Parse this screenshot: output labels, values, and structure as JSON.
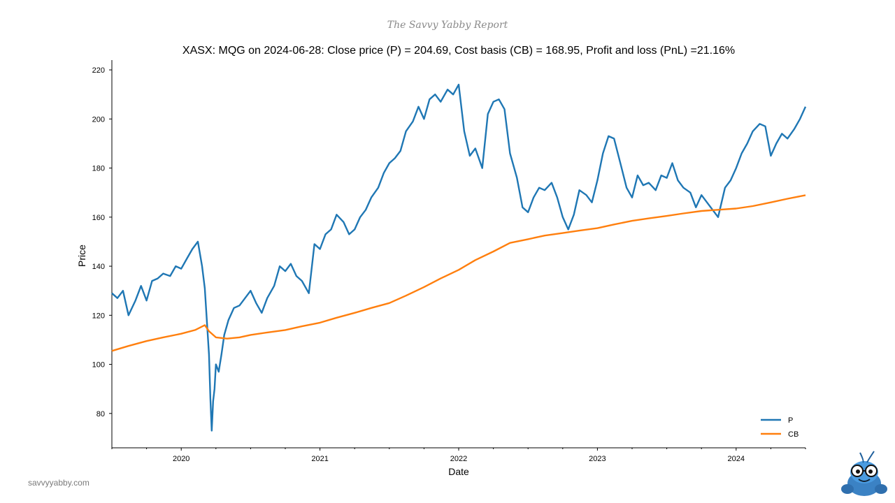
{
  "header": {
    "report_title": "The Savvy Yabby Report"
  },
  "footer": {
    "site_url": "savvyyabby.com"
  },
  "colors": {
    "price": "#1f77b4",
    "cost_basis": "#ff7f0e",
    "axis": "#000000"
  },
  "chart_data": {
    "type": "line",
    "title": "XASX: MQG on 2024-06-28: Close price (P) = 204.69, Cost basis (CB) = 168.95, Profit and loss (PnL) =21.16%",
    "xlabel": "Date",
    "ylabel": "Price",
    "xlim": [
      2019.5,
      2024.5
    ],
    "ylim": [
      66,
      224
    ],
    "x_ticks": [
      2020,
      2021,
      2022,
      2023,
      2024
    ],
    "x_tick_labels": [
      "2020",
      "2021",
      "2022",
      "2023",
      "2024"
    ],
    "y_ticks": [
      80,
      100,
      120,
      140,
      160,
      180,
      200,
      220
    ],
    "y_tick_labels": [
      "80",
      "100",
      "120",
      "140",
      "160",
      "180",
      "200",
      "220"
    ],
    "legend_position": "bottom-right",
    "grid": false,
    "series": [
      {
        "name": "P",
        "x": [
          2019.5,
          2019.54,
          2019.58,
          2019.62,
          2019.67,
          2019.71,
          2019.75,
          2019.79,
          2019.83,
          2019.87,
          2019.92,
          2019.96,
          2020.0,
          2020.04,
          2020.08,
          2020.12,
          2020.15,
          2020.17,
          2020.18,
          2020.2,
          2020.21,
          2020.22,
          2020.23,
          2020.24,
          2020.25,
          2020.27,
          2020.29,
          2020.31,
          2020.34,
          2020.38,
          2020.42,
          2020.46,
          2020.5,
          2020.54,
          2020.58,
          2020.62,
          2020.67,
          2020.71,
          2020.75,
          2020.79,
          2020.83,
          2020.87,
          2020.92,
          2020.96,
          2021.0,
          2021.04,
          2021.08,
          2021.12,
          2021.17,
          2021.21,
          2021.25,
          2021.29,
          2021.33,
          2021.37,
          2021.42,
          2021.46,
          2021.5,
          2021.54,
          2021.58,
          2021.62,
          2021.67,
          2021.71,
          2021.75,
          2021.79,
          2021.83,
          2021.87,
          2021.92,
          2021.96,
          2022.0,
          2022.04,
          2022.08,
          2022.12,
          2022.17,
          2022.21,
          2022.25,
          2022.29,
          2022.33,
          2022.37,
          2022.42,
          2022.46,
          2022.5,
          2022.54,
          2022.58,
          2022.62,
          2022.67,
          2022.71,
          2022.75,
          2022.79,
          2022.83,
          2022.87,
          2022.92,
          2022.96,
          2023.0,
          2023.04,
          2023.08,
          2023.12,
          2023.17,
          2023.21,
          2023.25,
          2023.29,
          2023.33,
          2023.37,
          2023.42,
          2023.46,
          2023.5,
          2023.54,
          2023.58,
          2023.62,
          2023.67,
          2023.71,
          2023.75,
          2023.79,
          2023.83,
          2023.87,
          2023.92,
          2023.96,
          2024.0,
          2024.04,
          2024.08,
          2024.12,
          2024.17,
          2024.21,
          2024.25,
          2024.29,
          2024.33,
          2024.37,
          2024.42,
          2024.46,
          2024.5
        ],
        "y": [
          129,
          127,
          130,
          120,
          126,
          132,
          126,
          134,
          135,
          137,
          136,
          140,
          139,
          143,
          147,
          150,
          140,
          131,
          122,
          104,
          86,
          73,
          85,
          90,
          100,
          97,
          104,
          112,
          118,
          123,
          124,
          127,
          130,
          125,
          121,
          127,
          132,
          140,
          138,
          141,
          136,
          134,
          129,
          149,
          147,
          153,
          155,
          161,
          158,
          153,
          155,
          160,
          163,
          168,
          172,
          178,
          182,
          184,
          187,
          195,
          199,
          205,
          200,
          208,
          210,
          207,
          212,
          210,
          214,
          195,
          185,
          188,
          180,
          202,
          207,
          208,
          204,
          186,
          176,
          164,
          162,
          168,
          172,
          171,
          174,
          168,
          160,
          155,
          161,
          171,
          169,
          166,
          175,
          186,
          193,
          192,
          181,
          172,
          168,
          177,
          173,
          174,
          171,
          177,
          176,
          182,
          175,
          172,
          170,
          164,
          169,
          166,
          163,
          160,
          172,
          175,
          180,
          186,
          190,
          195,
          198,
          197,
          185,
          190,
          194,
          192,
          196,
          200,
          205
        ]
      },
      {
        "name": "CB",
        "x": [
          2019.5,
          2019.62,
          2019.75,
          2019.87,
          2020.0,
          2020.1,
          2020.17,
          2020.2,
          2020.25,
          2020.33,
          2020.42,
          2020.5,
          2020.62,
          2020.75,
          2020.87,
          2021.0,
          2021.12,
          2021.25,
          2021.37,
          2021.5,
          2021.62,
          2021.75,
          2021.87,
          2022.0,
          2022.12,
          2022.25,
          2022.37,
          2022.5,
          2022.62,
          2022.75,
          2022.87,
          2023.0,
          2023.12,
          2023.25,
          2023.37,
          2023.5,
          2023.62,
          2023.75,
          2023.87,
          2024.0,
          2024.12,
          2024.25,
          2024.37,
          2024.5
        ],
        "y": [
          105.5,
          107.5,
          109.5,
          111.0,
          112.5,
          114.0,
          116.0,
          113.5,
          111.0,
          110.5,
          111.0,
          112.0,
          113.0,
          114.0,
          115.5,
          117.0,
          119.0,
          121.0,
          123.0,
          125.0,
          128.0,
          131.5,
          135.0,
          138.5,
          142.5,
          146.0,
          149.5,
          151.0,
          152.5,
          153.5,
          154.5,
          155.5,
          157.0,
          158.5,
          159.5,
          160.5,
          161.5,
          162.5,
          163.0,
          163.5,
          164.5,
          166.0,
          167.5,
          168.95
        ]
      }
    ]
  }
}
